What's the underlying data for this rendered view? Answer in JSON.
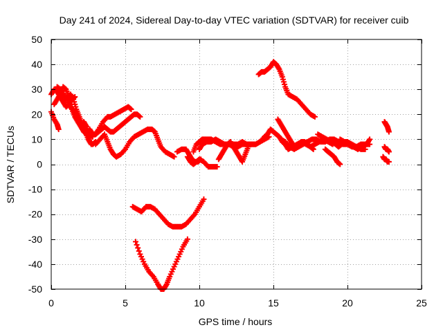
{
  "chart_data": {
    "type": "scatter",
    "title": "Day 241 of 2024, Sidereal Day-to-day VTEC variation (SDTVAR) for receiver cuib",
    "xlabel": "GPS time / hours",
    "ylabel": "SDTVAR / TECUs",
    "xlim": [
      0,
      25
    ],
    "ylim": [
      -50,
      50
    ],
    "xticks": [
      0,
      5,
      10,
      15,
      20,
      25
    ],
    "yticks": [
      -50,
      -40,
      -30,
      -20,
      -10,
      0,
      10,
      20,
      30,
      40,
      50
    ],
    "grid": true,
    "marker": "+",
    "color": "#ff0000",
    "series": [
      {
        "name": "s01",
        "x": [
          0.0,
          0.2,
          0.4,
          0.5
        ],
        "y": [
          21,
          18,
          16,
          14
        ]
      },
      {
        "name": "s02",
        "x": [
          0.0,
          0.2,
          0.4,
          0.6,
          0.8,
          1.0,
          1.2,
          1.4,
          1.6
        ],
        "y": [
          28,
          30,
          29,
          27,
          25,
          23,
          24,
          26,
          27
        ]
      },
      {
        "name": "s03",
        "x": [
          0.2,
          0.4,
          0.6,
          0.8,
          1.0,
          1.2,
          1.4,
          1.6,
          1.8,
          2.0
        ],
        "y": [
          24,
          26,
          28,
          31,
          30,
          27,
          23,
          20,
          17,
          16
        ]
      },
      {
        "name": "s04",
        "x": [
          0.4,
          0.6,
          0.8,
          1.0,
          1.3,
          1.5,
          1.7,
          1.9,
          2.1,
          2.3,
          2.5,
          2.7
        ],
        "y": [
          31,
          30,
          28,
          26,
          28,
          26,
          22,
          19,
          16,
          13,
          10,
          8
        ]
      },
      {
        "name": "s05",
        "x": [
          1.0,
          1.2,
          1.4,
          1.6,
          1.8,
          2.0,
          2.2,
          2.4,
          2.6,
          2.8
        ],
        "y": [
          27,
          24,
          22,
          19,
          17,
          15,
          13,
          12,
          12,
          11
        ]
      },
      {
        "name": "s06",
        "x": [
          2.2,
          2.4,
          2.5,
          2.6,
          2.8,
          3.0
        ],
        "y": [
          17,
          15,
          12,
          9,
          8,
          9
        ]
      },
      {
        "name": "s07",
        "x": [
          2.6,
          2.8,
          3.0,
          3.2,
          3.4,
          3.6,
          3.8,
          4.0,
          4.2,
          4.4,
          4.6,
          4.8,
          5.0,
          5.2,
          5.4,
          5.6,
          5.8,
          6.0
        ],
        "y": [
          14,
          12,
          12,
          13,
          14,
          15,
          14,
          13,
          13,
          14,
          15,
          16,
          17,
          18,
          19,
          20,
          20,
          19
        ]
      },
      {
        "name": "s08",
        "x": [
          3.0,
          3.2,
          3.5,
          3.8,
          4.0,
          4.3,
          4.6,
          4.9,
          5.2,
          5.4
        ],
        "y": [
          12,
          14,
          17,
          19,
          19,
          20,
          21,
          22,
          23,
          22
        ]
      },
      {
        "name": "s09",
        "x": [
          3.0,
          3.3,
          3.6,
          3.8,
          4.0,
          4.2,
          4.4
        ],
        "y": [
          8,
          10,
          12,
          9,
          6,
          4,
          3
        ]
      },
      {
        "name": "s10",
        "x": [
          4.4,
          4.7,
          5.0,
          5.3,
          5.6,
          5.9,
          6.2,
          6.5,
          6.8,
          7.0,
          7.2,
          7.4,
          7.7,
          8.0,
          8.3
        ],
        "y": [
          3,
          4,
          6,
          9,
          11,
          12,
          13,
          14,
          14,
          13,
          10,
          7,
          5,
          4,
          3
        ]
      },
      {
        "name": "s11",
        "x": [
          8.5,
          8.8,
          9.1,
          9.3,
          9.5,
          9.7,
          9.9,
          10.1
        ],
        "y": [
          5,
          6,
          6,
          4,
          2,
          1,
          1,
          2
        ]
      },
      {
        "name": "s12",
        "x": [
          9.2,
          9.4,
          9.6,
          9.8,
          10.0,
          10.3,
          10.6,
          10.9,
          11.2
        ],
        "y": [
          3,
          1,
          0,
          1,
          2,
          1,
          -1,
          -1,
          -1
        ]
      },
      {
        "name": "s13",
        "x": [
          9.6,
          9.8,
          10.0,
          10.2,
          10.5,
          10.8,
          11.1,
          11.4,
          11.7,
          12.0,
          12.3,
          12.6,
          12.9,
          13.2,
          13.5,
          13.8,
          14.1,
          14.4,
          14.7
        ],
        "y": [
          5,
          8,
          9,
          10,
          10,
          10,
          9,
          8,
          8,
          8,
          7,
          7,
          8,
          8,
          8,
          8,
          9,
          10,
          11
        ]
      },
      {
        "name": "s14",
        "x": [
          10.0,
          10.2,
          10.5,
          10.8,
          11.1,
          11.4,
          11.7,
          12.0,
          12.3,
          12.6,
          12.9,
          13.2,
          13.5,
          13.8,
          14.1,
          14.4
        ],
        "y": [
          6,
          8,
          9,
          9,
          10,
          9,
          8,
          8,
          8,
          8,
          9,
          8,
          8,
          8,
          9,
          11
        ]
      },
      {
        "name": "s15",
        "x": [
          11.3,
          11.5,
          11.7,
          11.9,
          12.1,
          12.3,
          12.5,
          12.7,
          12.9,
          13.1,
          13.3
        ],
        "y": [
          2,
          4,
          6,
          8,
          9,
          7,
          5,
          3,
          1,
          4,
          7
        ]
      },
      {
        "name": "s16",
        "x": [
          14.0,
          14.2,
          14.4,
          14.6,
          14.8,
          15.0,
          15.2,
          15.4,
          15.6,
          15.8,
          16.0,
          16.3,
          16.6,
          16.9,
          17.2,
          17.5,
          17.8
        ],
        "y": [
          36,
          37,
          37,
          38,
          39,
          41,
          40,
          38,
          35,
          31,
          28,
          27,
          26,
          24,
          22,
          20,
          19
        ]
      },
      {
        "name": "s17",
        "x": [
          14.4,
          14.6,
          14.8,
          15.0,
          15.2,
          15.4,
          15.6,
          15.8,
          16.0,
          16.3,
          16.6,
          16.9,
          17.2,
          17.5,
          17.8,
          18.1,
          18.4,
          18.7,
          19.0
        ],
        "y": [
          11,
          12,
          14,
          13,
          12,
          11,
          9,
          8,
          6,
          7,
          8,
          9,
          8,
          7,
          8,
          9,
          10,
          9,
          8
        ]
      },
      {
        "name": "s18",
        "x": [
          15.3,
          15.5,
          15.7,
          15.9,
          16.1,
          16.3,
          16.5,
          16.7,
          16.9,
          17.1,
          17.3,
          17.5,
          17.7
        ],
        "y": [
          18,
          16,
          14,
          12,
          10,
          8,
          7,
          8,
          9,
          9,
          8,
          7,
          6
        ]
      },
      {
        "name": "s19",
        "x": [
          15.5,
          15.8,
          16.1,
          16.4,
          16.7,
          17.0,
          17.3,
          17.6,
          17.9,
          18.2,
          18.5,
          18.8,
          19.1,
          19.4,
          19.7,
          20.0,
          20.3,
          20.6,
          20.9,
          21.2,
          21.5
        ],
        "y": [
          10,
          9,
          7,
          6,
          7,
          8,
          9,
          10,
          10,
          9,
          9,
          10,
          10,
          9,
          8,
          8,
          7,
          7,
          8,
          8,
          8
        ]
      },
      {
        "name": "s20",
        "x": [
          18.0,
          18.3,
          18.6,
          18.9,
          19.2,
          19.4,
          19.6,
          19.8,
          20.0,
          20.3,
          20.6,
          20.9,
          21.2
        ],
        "y": [
          12,
          11,
          10,
          9,
          8,
          7,
          8,
          9,
          9,
          8,
          7,
          6,
          6
        ]
      },
      {
        "name": "s21",
        "x": [
          18.5,
          18.7,
          18.9,
          19.1,
          19.3,
          19.5
        ],
        "y": [
          6,
          5,
          4,
          3,
          1,
          0
        ]
      },
      {
        "name": "s22",
        "x": [
          19.5,
          19.8,
          20.1,
          20.4,
          20.7,
          21.0,
          21.3,
          21.5
        ],
        "y": [
          10,
          9,
          8,
          7,
          6,
          7,
          8,
          10
        ]
      },
      {
        "name": "s23",
        "x": [
          22.5,
          22.6,
          22.7,
          22.8
        ],
        "y": [
          17,
          16,
          15,
          13
        ]
      },
      {
        "name": "s24",
        "x": [
          22.5,
          22.6,
          22.7,
          22.8
        ],
        "y": [
          7,
          6,
          6,
          5
        ]
      },
      {
        "name": "s25",
        "x": [
          22.4,
          22.5,
          22.6,
          22.7,
          22.8
        ],
        "y": [
          3,
          2,
          2,
          1,
          1
        ]
      },
      {
        "name": "s26",
        "x": [
          5.5,
          5.8,
          6.1,
          6.4,
          6.7,
          7.0,
          7.3,
          7.6,
          7.9,
          8.2,
          8.5,
          8.8,
          9.1,
          9.4,
          9.7,
          10.0,
          10.3
        ],
        "y": [
          -17,
          -18,
          -19,
          -17,
          -17,
          -18,
          -20,
          -22,
          -24,
          -25,
          -25,
          -25,
          -24,
          -22,
          -20,
          -17,
          -14
        ]
      },
      {
        "name": "s27",
        "x": [
          5.7,
          6.0,
          6.3,
          6.6,
          6.9,
          7.2,
          7.4,
          7.6,
          7.8,
          8.0,
          8.3,
          8.6,
          8.9,
          9.2
        ],
        "y": [
          -31,
          -36,
          -40,
          -43,
          -45,
          -48,
          -50,
          -50,
          -48,
          -45,
          -41,
          -37,
          -33,
          -30
        ]
      }
    ]
  }
}
